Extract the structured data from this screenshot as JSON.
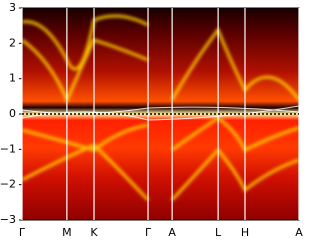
{
  "chart_data": {
    "type": "heatmap",
    "xlim": [
      0,
      1
    ],
    "xticks": [
      {
        "value": 0,
        "label": "Γ"
      },
      {
        "value": 0.162,
        "label": "M"
      },
      {
        "value": 0.26,
        "label": "K"
      },
      {
        "value": 0.455,
        "label": "Γ"
      },
      {
        "value": 0.542,
        "label": "A"
      },
      {
        "value": 0.708,
        "label": "L"
      },
      {
        "value": 0.805,
        "label": "H"
      },
      {
        "value": 1,
        "label": "A"
      }
    ],
    "ylim": [
      -3,
      3
    ],
    "yticks": [
      {
        "value": -3,
        "label": "−3"
      },
      {
        "value": -2,
        "label": "−2"
      },
      {
        "value": -1,
        "label": "−1"
      },
      0,
      1,
      2,
      3
    ],
    "grid": true,
    "zero_line": true
  }
}
